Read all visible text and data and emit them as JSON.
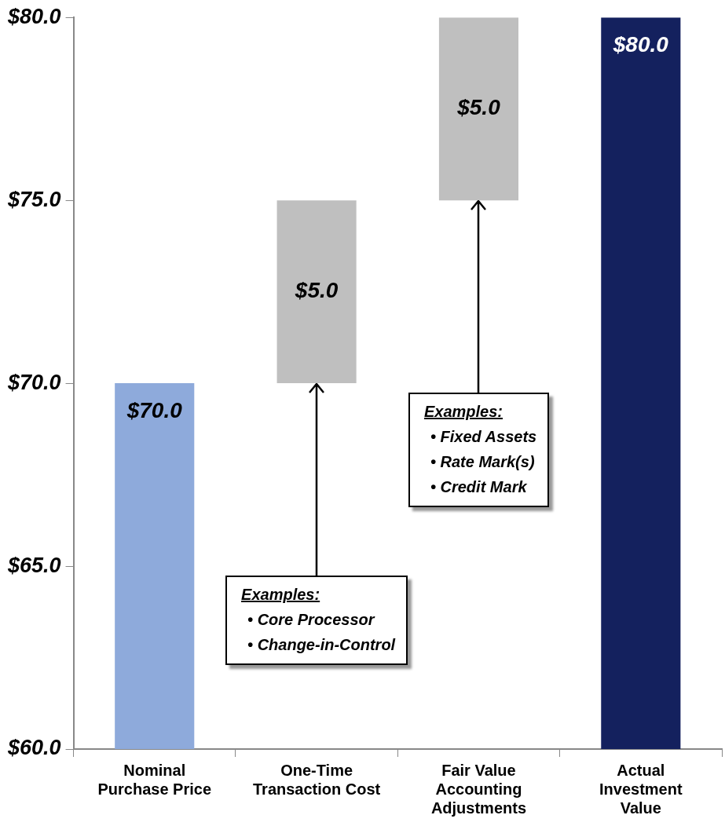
{
  "chart_data": {
    "type": "bar",
    "categories": [
      "Nominal\nPurchase Price",
      "One-Time\nTransaction Cost",
      "Fair Value\nAccounting\nAdjustments",
      "Actual\nInvestment\nValue"
    ],
    "values": [
      70.0,
      5.0,
      5.0,
      80.0
    ],
    "base": [
      null,
      70.0,
      75.0,
      null
    ],
    "colors": [
      "#8eaadb",
      "#bfbfbf",
      "#bfbfbf",
      "#14215e"
    ],
    "value_labels": [
      "$70.0",
      "$5.0",
      "$5.0",
      "$80.0"
    ],
    "ylim": [
      60,
      80
    ],
    "yticks": [
      {
        "value": 60,
        "label": "$60.0"
      },
      {
        "value": 65,
        "label": "$65.0"
      },
      {
        "value": 70,
        "label": "$70.0"
      },
      {
        "value": 75,
        "label": "$75.0"
      },
      {
        "value": 80,
        "label": "$80.0"
      }
    ],
    "grid": false,
    "legend": false,
    "annotations": [
      {
        "text": "Examples:\n• Core Processor\n• Change-in-Control",
        "x": "One-Time\nTransaction Cost",
        "y": 70
      },
      {
        "text": "Examples:\n• Fixed Assets\n• Rate Mark(s)\n• Credit Mark",
        "x": "Fair Value\nAccounting\nAdjustments",
        "y": 75
      }
    ]
  }
}
